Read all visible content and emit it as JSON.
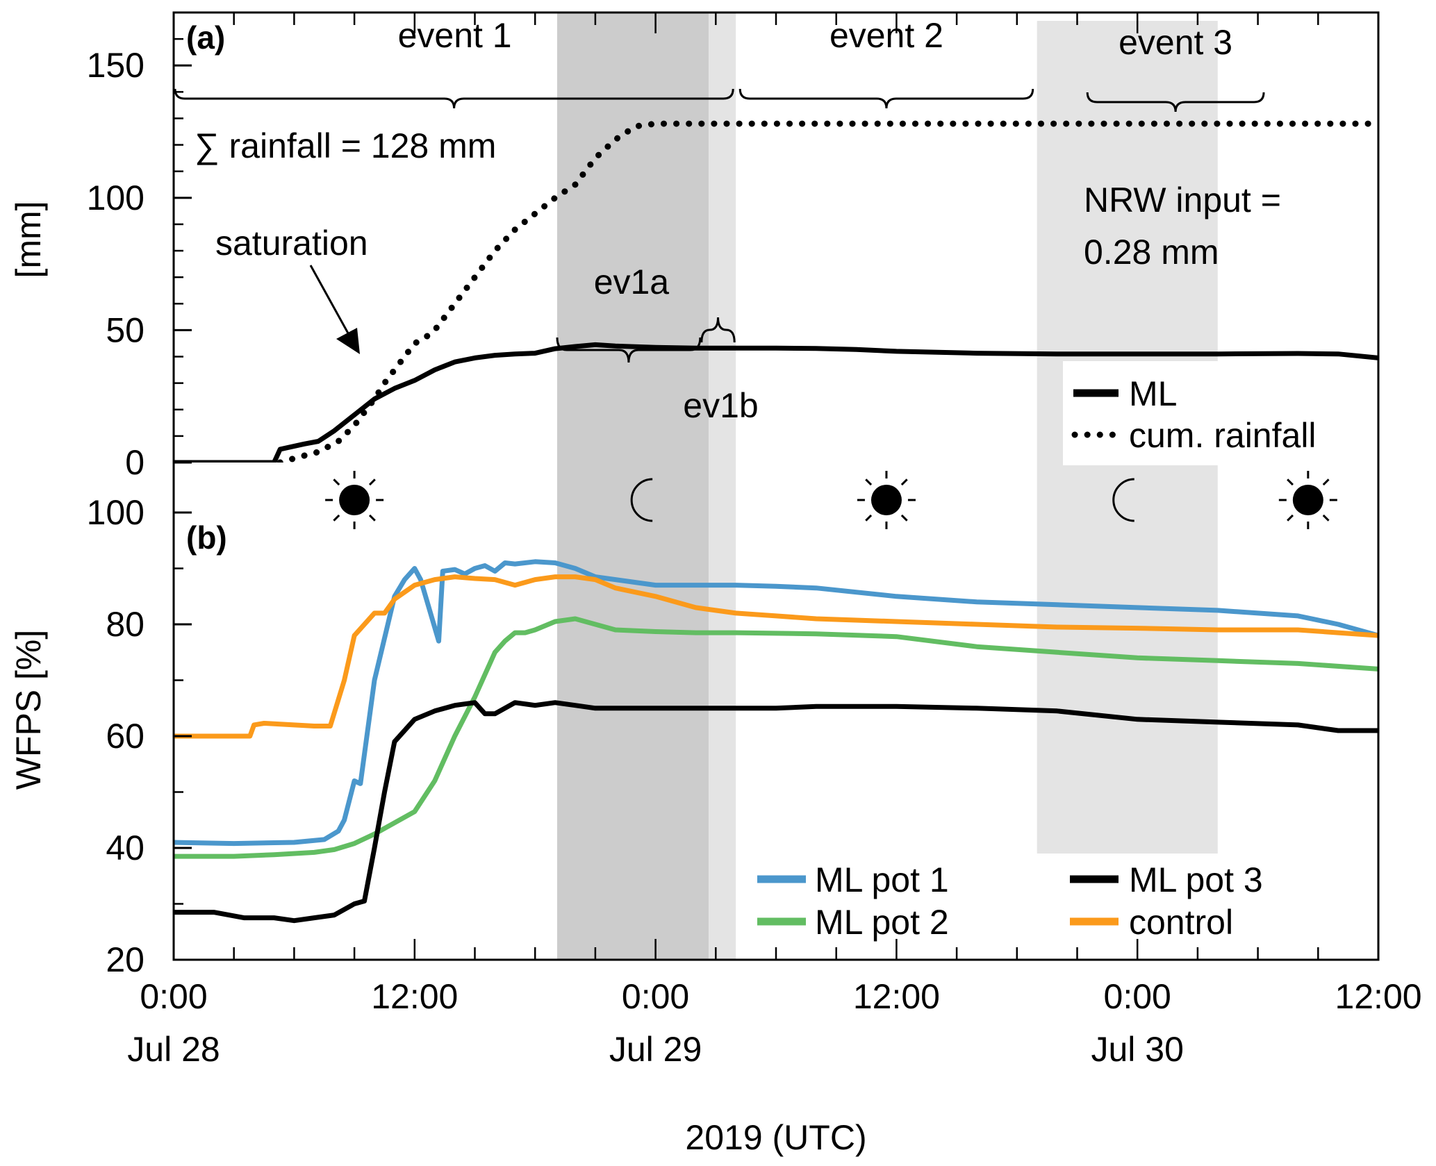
{
  "x_axis": {
    "title": "2019 (UTC)",
    "range_hours": [
      0,
      60
    ],
    "major_ticks": [
      {
        "h": 0,
        "time": "0:00",
        "date": "Jul 28"
      },
      {
        "h": 12,
        "time": "12:00",
        "date": ""
      },
      {
        "h": 24,
        "time": "0:00",
        "date": "Jul 29"
      },
      {
        "h": 36,
        "time": "12:00",
        "date": ""
      },
      {
        "h": 48,
        "time": "0:00",
        "date": "Jul 30"
      },
      {
        "h": 60,
        "time": "12:00",
        "date": ""
      }
    ],
    "minor_tick_step_hours": 3
  },
  "panel_a": {
    "label": "(a)",
    "ylabel": "[mm]",
    "ylim": [
      0,
      170
    ],
    "yticks": [
      0,
      50,
      100,
      150
    ],
    "rainfall_note": "∑ rainfall = 128 mm",
    "nrw_note_line1": "NRW input =",
    "nrw_note_line2": "0.28 mm",
    "saturation_label": "saturation",
    "events": [
      {
        "label": "event 1",
        "start_h": 0,
        "end_h": 28
      },
      {
        "label": "event 2",
        "start_h": 28,
        "end_h": 43
      },
      {
        "label": "event 3",
        "start_h": 45.3,
        "end_h": 54.5
      }
    ],
    "subevents": [
      {
        "label": "ev1a",
        "start_h": 19.1,
        "end_h": 26.5
      },
      {
        "label": "ev1b",
        "start_h": 26.5,
        "end_h": 28
      }
    ],
    "legend": [
      {
        "label": "ML",
        "style": "solid"
      },
      {
        "label": "cum. rainfall",
        "style": "dotted"
      }
    ]
  },
  "panel_b": {
    "label": "(b)",
    "ylabel": "WFPS [%]",
    "ylim": [
      20,
      100
    ],
    "yticks": [
      20,
      40,
      60,
      80,
      100
    ],
    "legend_left": [
      "ML pot 1",
      "ML pot 2"
    ],
    "legend_right": [
      "ML pot 3",
      "control"
    ]
  },
  "day_night": [
    {
      "icon": "sun",
      "h": 9
    },
    {
      "icon": "moon",
      "h": 23.5
    },
    {
      "icon": "sun",
      "h": 35.5
    },
    {
      "icon": "moon",
      "h": 47.5
    },
    {
      "icon": "sun",
      "h": 56.5
    }
  ],
  "shading": [
    {
      "start_h": 19.1,
      "end_h": 26.65,
      "color": "#cccccc"
    },
    {
      "start_h": 26.65,
      "end_h": 28,
      "color": "#e4e4e4"
    },
    {
      "start_h": 43,
      "end_h": 52,
      "color": "#e4e4e4"
    }
  ],
  "colors": {
    "ml_pot_1": "#4b97cc",
    "ml_pot_2": "#62bd62",
    "ml_pot_3": "#000000",
    "control": "#fb9a1b",
    "dark_shade": "#cccccc",
    "light_shade": "#e4e4e4"
  },
  "chart_data": [
    {
      "type": "line",
      "title": "(a)",
      "xlabel": "2019 (UTC)",
      "ylabel": "[mm]",
      "ylim": [
        0,
        170
      ],
      "x_unit": "hours since 2019-07-28 00:00 UTC",
      "series": [
        {
          "name": "ML",
          "style": "solid",
          "color": "#000000",
          "x": [
            0,
            5,
            5.3,
            6.5,
            7.2,
            8,
            9,
            10,
            11,
            12,
            13,
            14,
            15,
            16,
            17,
            18,
            19,
            20,
            21,
            22,
            24,
            26,
            28,
            30,
            32,
            34,
            36,
            40,
            44,
            48,
            52,
            56,
            58,
            60
          ],
          "y": [
            0,
            0,
            5,
            7,
            8,
            12,
            18,
            24,
            28,
            31,
            35,
            38,
            39.5,
            40.5,
            41,
            41.3,
            43,
            43.8,
            44.5,
            44,
            43.5,
            43.2,
            43.2,
            43.2,
            43.1,
            42.7,
            42,
            41.3,
            41,
            41,
            41,
            41.2,
            41,
            39.5
          ]
        },
        {
          "name": "cum. rainfall",
          "style": "dotted",
          "color": "#000000",
          "x": [
            5.3,
            6.2,
            7.2,
            8.2,
            9,
            10,
            10.5,
            11,
            12,
            12.5,
            13,
            13.5,
            14,
            15,
            16,
            17,
            18,
            19,
            20,
            21,
            22,
            23,
            24,
            25,
            26,
            28,
            60
          ],
          "y": [
            0,
            2,
            4,
            8,
            14,
            24,
            30,
            35,
            45,
            47,
            50,
            55,
            60,
            70,
            80,
            88,
            94,
            100,
            105,
            115,
            122,
            127,
            128,
            128,
            128,
            128,
            128
          ]
        }
      ]
    },
    {
      "type": "line",
      "title": "(b)",
      "xlabel": "2019 (UTC)",
      "ylabel": "WFPS [%]",
      "ylim": [
        20,
        100
      ],
      "x_unit": "hours since 2019-07-28 00:00 UTC",
      "series": [
        {
          "name": "ML pot 1",
          "color": "#4b97cc",
          "x": [
            0,
            3,
            6,
            7.5,
            8.2,
            8.5,
            9,
            9.3,
            10,
            11,
            11.5,
            12,
            12.3,
            13.2,
            13.4,
            13.6,
            14,
            14.5,
            15,
            15.5,
            16,
            16.5,
            17,
            18,
            19,
            20,
            21,
            22,
            23,
            24,
            26,
            28,
            30,
            32,
            36,
            40,
            44,
            48,
            52,
            54,
            56,
            58,
            60
          ],
          "y": [
            41,
            40.8,
            41,
            41.5,
            43,
            45,
            52,
            51.5,
            70,
            85,
            88,
            90,
            88,
            77,
            89.5,
            89.6,
            89.8,
            89,
            90,
            90.5,
            89.5,
            91,
            90.8,
            91.2,
            91,
            90,
            88.5,
            88,
            87.5,
            87,
            87,
            87,
            86.8,
            86.5,
            85,
            84,
            83.5,
            83,
            82.5,
            82,
            81.5,
            80,
            78
          ]
        },
        {
          "name": "ML pot 2",
          "color": "#62bd62",
          "x": [
            0,
            3,
            5,
            7,
            8,
            9,
            10,
            11,
            12,
            13,
            14,
            15,
            16,
            16.5,
            17,
            17.5,
            18,
            19,
            20,
            21,
            22,
            24,
            26,
            28,
            30,
            32,
            36,
            40,
            44,
            48,
            52,
            56,
            60
          ],
          "y": [
            38.5,
            38.5,
            38.8,
            39.2,
            39.7,
            40.8,
            42.5,
            44.5,
            46.5,
            52,
            60,
            67,
            75,
            77,
            78.5,
            78.5,
            79,
            80.5,
            81,
            80,
            79,
            78.7,
            78.5,
            78.5,
            78.4,
            78.3,
            77.8,
            76,
            75,
            74,
            73.5,
            73,
            72
          ]
        },
        {
          "name": "ML pot 3",
          "color": "#000000",
          "x": [
            0,
            2,
            3.5,
            5,
            6,
            7,
            8,
            9,
            9.5,
            10,
            10.5,
            11,
            12,
            13,
            14,
            15,
            15.5,
            16,
            17,
            18,
            19,
            20,
            21,
            22,
            24,
            26,
            28,
            30,
            32,
            36,
            40,
            44,
            48,
            52,
            56,
            58,
            60
          ],
          "y": [
            28.5,
            28.5,
            27.5,
            27.5,
            27,
            27.5,
            28,
            30,
            30.5,
            40,
            50,
            59,
            63,
            64.5,
            65.5,
            66,
            64,
            64,
            66,
            65.5,
            66,
            65.5,
            65,
            65,
            65,
            65,
            65,
            65,
            65.3,
            65.3,
            65,
            64.5,
            63,
            62.5,
            62,
            61,
            61
          ]
        },
        {
          "name": "control",
          "color": "#fb9a1b",
          "x": [
            0,
            2,
            3.8,
            4,
            4.5,
            6,
            7,
            7.8,
            8.5,
            9,
            10,
            10.5,
            11,
            12,
            13,
            14,
            15,
            16,
            17,
            18,
            19,
            20,
            21,
            22,
            24,
            26,
            28,
            30,
            32,
            36,
            40,
            44,
            48,
            52,
            56,
            58,
            60
          ],
          "y": [
            60,
            60,
            60,
            62,
            62.3,
            62,
            61.8,
            61.8,
            70,
            78,
            82,
            82,
            84.5,
            87,
            88,
            88.5,
            88.2,
            88,
            87,
            88,
            88.5,
            88.5,
            88,
            86.5,
            85,
            83,
            82,
            81.5,
            81,
            80.5,
            80,
            79.5,
            79.3,
            79,
            79,
            78.5,
            78
          ]
        }
      ]
    }
  ]
}
